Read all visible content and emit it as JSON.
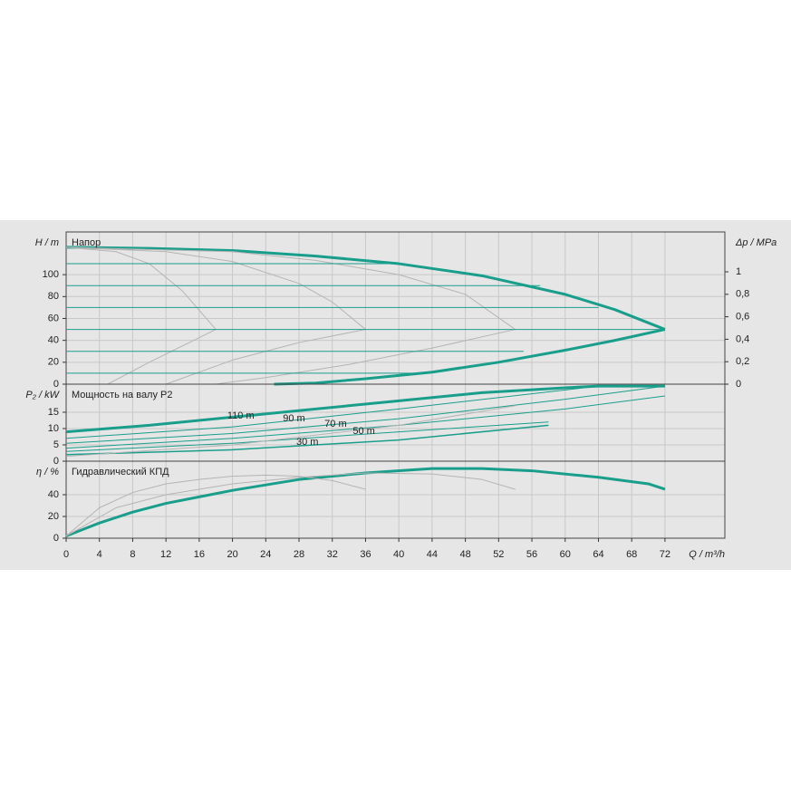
{
  "chart_data": [
    {
      "type": "line",
      "title": "Напор",
      "y_label": "H / m",
      "y2_label": "Δp / MPa",
      "xlim": [
        0,
        79.2
      ],
      "xticks": [
        0,
        4,
        8,
        12,
        16,
        20,
        24,
        28,
        32,
        36,
        40,
        44,
        48,
        52,
        56,
        60,
        64,
        68,
        72
      ],
      "ylim": [
        0,
        139
      ],
      "yticks": [
        0,
        20,
        40,
        60,
        80,
        100
      ],
      "y2lim": [
        0,
        1.355
      ],
      "y2ticks": [
        0,
        {
          "value": 0.2,
          "label": "0,2"
        },
        {
          "value": 0.4,
          "label": "0,4"
        },
        {
          "value": 0.6,
          "label": "0,6"
        },
        {
          "value": 0.8,
          "label": "0,8"
        },
        1
      ],
      "grid": true,
      "series": [
        {
          "color": "#1a9e8c",
          "width": 3,
          "x": [
            0,
            10,
            20,
            30,
            40,
            50,
            60,
            66,
            72
          ],
          "values": [
            125,
            124,
            122,
            117,
            110,
            99,
            82,
            68,
            50
          ]
        },
        {
          "color": "#1a9e8c",
          "width": 3,
          "x": [
            25,
            30,
            36,
            44,
            52,
            60,
            66,
            72
          ],
          "values": [
            0,
            1,
            5,
            11,
            20,
            31,
            40,
            50
          ]
        },
        {
          "color": "#b4b4b4",
          "width": 1,
          "x": [
            0,
            6,
            10,
            14,
            18,
            14,
            10,
            5
          ],
          "values": [
            125,
            121,
            110,
            85,
            50,
            35,
            20,
            0
          ]
        },
        {
          "color": "#b4b4b4",
          "width": 1,
          "x": [
            0,
            12,
            20,
            28,
            32,
            36,
            28,
            20,
            12
          ],
          "values": [
            125,
            121,
            112,
            92,
            75,
            50,
            38,
            22,
            0
          ]
        },
        {
          "color": "#b4b4b4",
          "width": 1,
          "x": [
            0,
            20,
            30,
            40,
            48,
            54,
            44,
            34,
            24,
            18
          ],
          "values": [
            125,
            121,
            113,
            100,
            82,
            50,
            33,
            18,
            6,
            0
          ]
        },
        {
          "color": "#1a9e8c",
          "width": 1,
          "x": [
            0,
            40
          ],
          "values": [
            110,
            110
          ]
        },
        {
          "color": "#1a9e8c",
          "width": 1,
          "x": [
            0,
            57
          ],
          "values": [
            90,
            90
          ]
        },
        {
          "color": "#1a9e8c",
          "width": 1,
          "x": [
            0,
            64
          ],
          "values": [
            70,
            70
          ]
        },
        {
          "color": "#1a9e8c",
          "width": 1,
          "x": [
            0,
            72
          ],
          "values": [
            50,
            50
          ]
        },
        {
          "color": "#1a9e8c",
          "width": 1,
          "x": [
            0,
            55
          ],
          "values": [
            30,
            30
          ]
        },
        {
          "color": "#1a9e8c",
          "width": 1,
          "x": [
            0,
            42
          ],
          "values": [
            10,
            10
          ]
        }
      ]
    },
    {
      "type": "line",
      "title": "Мощность на валу P2",
      "y_label": "P₂ / kW",
      "xlim": [
        0,
        79.2
      ],
      "xticks": [
        0,
        4,
        8,
        12,
        16,
        20,
        24,
        28,
        32,
        36,
        40,
        44,
        48,
        52,
        56,
        60,
        64,
        68,
        72
      ],
      "ylim": [
        0,
        23.6
      ],
      "yticks": [
        0,
        5,
        10,
        15
      ],
      "grid": true,
      "series": [
        {
          "color": "#1a9e8c",
          "width": 3,
          "x": [
            0,
            10,
            20,
            30,
            40,
            50,
            60,
            64,
            72
          ],
          "values": [
            9,
            11,
            13.5,
            16,
            18.5,
            21,
            22.5,
            23,
            23
          ]
        },
        {
          "color": "#1a9e8c",
          "width": 1,
          "x": [
            0,
            20,
            40,
            64
          ],
          "values": [
            7,
            10.5,
            16,
            23
          ]
        },
        {
          "color": "#1a9e8c",
          "width": 1,
          "x": [
            0,
            20,
            40,
            60,
            72
          ],
          "values": [
            5.5,
            8.5,
            13,
            19,
            23
          ]
        },
        {
          "color": "#1a9e8c",
          "width": 1,
          "x": [
            0,
            20,
            40,
            60,
            72
          ],
          "values": [
            4,
            7,
            11,
            16,
            20
          ]
        },
        {
          "color": "#1a9e8c",
          "width": 1,
          "x": [
            0,
            20,
            40,
            58
          ],
          "values": [
            3,
            5.5,
            9,
            12
          ]
        },
        {
          "color": "#1a9e8c",
          "width": 1.5,
          "x": [
            0,
            20,
            40,
            58
          ],
          "values": [
            2,
            3.5,
            6.5,
            11
          ]
        },
        {
          "color": "#b4b4b4",
          "width": 1,
          "x": [
            0,
            20,
            40,
            54
          ],
          "values": [
            1.5,
            5,
            11,
            17
          ]
        }
      ],
      "annotations": [
        {
          "text": "110 m",
          "x": 21,
          "y": 13.9
        },
        {
          "text": "90 m",
          "x": 27.4,
          "y": 13
        },
        {
          "text": "70 m",
          "x": 32.4,
          "y": 11.4
        },
        {
          "text": "50 m",
          "x": 35.8,
          "y": 9.2
        },
        {
          "text": "30 m",
          "x": 29,
          "y": 5.8
        }
      ]
    },
    {
      "type": "line",
      "title": "Гидравлический КПД",
      "y_label": "η / %",
      "x_label": "Q / m³/h",
      "xlim": [
        0,
        79.2
      ],
      "xticks": [
        0,
        4,
        8,
        12,
        16,
        20,
        24,
        28,
        32,
        36,
        40,
        44,
        48,
        52,
        56,
        60,
        64,
        68,
        72
      ],
      "ylim": [
        0,
        70.8
      ],
      "yticks": [
        0,
        20,
        40
      ],
      "grid": true,
      "series": [
        {
          "color": "#1a9e8c",
          "width": 3,
          "x": [
            0,
            2,
            4,
            8,
            12,
            16,
            20,
            28,
            36,
            44,
            50,
            56,
            64,
            70,
            72
          ],
          "values": [
            2,
            8,
            14,
            24,
            32,
            38,
            44,
            54,
            60,
            64,
            64,
            62,
            56,
            50,
            45
          ]
        },
        {
          "color": "#b4b4b4",
          "width": 1,
          "x": [
            0,
            4,
            8,
            12,
            16,
            20,
            24,
            28,
            32,
            36
          ],
          "values": [
            2,
            28,
            42,
            50,
            54,
            57,
            58,
            57,
            53,
            45
          ]
        },
        {
          "color": "#b4b4b4",
          "width": 1,
          "x": [
            0,
            6,
            12,
            20,
            28,
            36,
            44,
            50,
            54
          ],
          "values": [
            2,
            28,
            40,
            50,
            56,
            60,
            59,
            54,
            45
          ]
        }
      ]
    }
  ]
}
